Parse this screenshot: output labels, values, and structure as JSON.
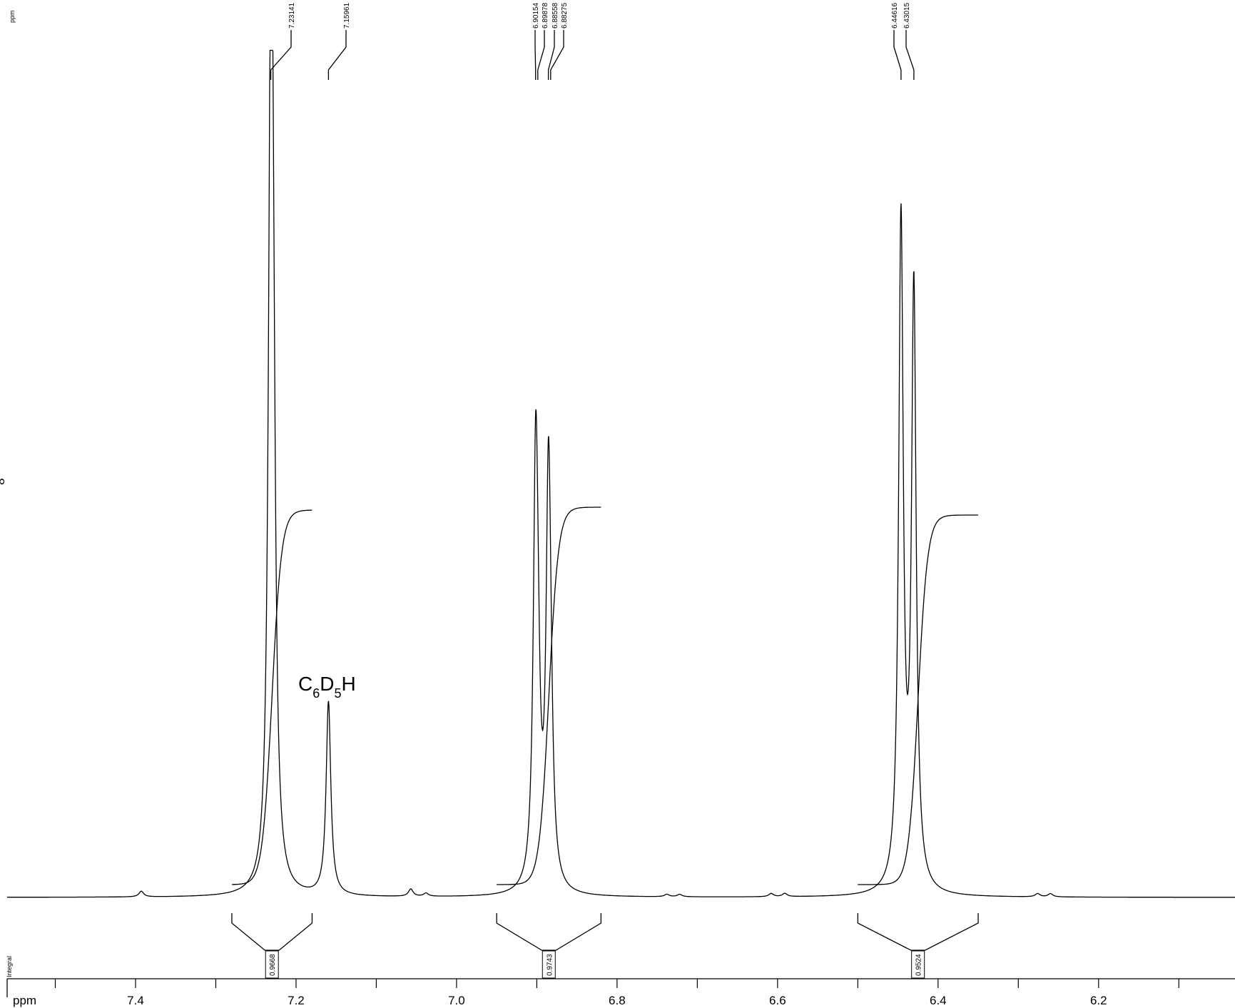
{
  "chart_data": {
    "type": "line",
    "x_unit": "ppm",
    "xlim": [
      7.56,
      6.03
    ],
    "x_reversed": true,
    "top_left_label": "ppm",
    "left_side_label": "8",
    "integral_axis_label": "Integral",
    "x_ticks": [
      7.4,
      7.2,
      7.0,
      6.8,
      6.6,
      6.4,
      6.2
    ],
    "x_tick_labels": [
      "7.4",
      "7.2",
      "7.0",
      "6.8",
      "6.6",
      "6.4",
      "6.2"
    ],
    "peak_labels": [
      "7.23141",
      "7.15961",
      "6.90154",
      "6.89878",
      "6.88558",
      "6.88275",
      "6.44616",
      "6.43015"
    ],
    "peaks": [
      {
        "ppm": 7.2314,
        "height": 1.0
      },
      {
        "ppm": 7.2285,
        "height": 0.4
      },
      {
        "ppm": 7.1596,
        "height": 0.24
      },
      {
        "ppm": 6.9015,
        "height": 0.48
      },
      {
        "ppm": 6.8988,
        "height": 0.15
      },
      {
        "ppm": 6.8856,
        "height": 0.465
      },
      {
        "ppm": 6.8828,
        "height": 0.12
      },
      {
        "ppm": 6.4462,
        "height": 0.827
      },
      {
        "ppm": 6.4302,
        "height": 0.74
      },
      {
        "ppm": 7.3928,
        "height": 0.007
      },
      {
        "ppm": 7.057,
        "height": 0.009
      },
      {
        "ppm": 7.038,
        "height": 0.004
      },
      {
        "ppm": 6.738,
        "height": 0.003
      },
      {
        "ppm": 6.722,
        "height": 0.003
      },
      {
        "ppm": 6.608,
        "height": 0.004
      },
      {
        "ppm": 6.591,
        "height": 0.004
      },
      {
        "ppm": 6.276,
        "height": 0.004
      },
      {
        "ppm": 6.26,
        "height": 0.004
      }
    ],
    "integrals": [
      {
        "from": 7.28,
        "to": 7.18,
        "value": "0.9668"
      },
      {
        "from": 6.95,
        "to": 6.82,
        "value": "0.9743"
      },
      {
        "from": 6.5,
        "to": 6.35,
        "value": "0.9524"
      }
    ],
    "annotations": [
      {
        "ppm": 7.1596,
        "text_main": "C",
        "sub1": "6",
        "text_mid": "D",
        "sub2": "5",
        "text_end": "H"
      }
    ]
  }
}
